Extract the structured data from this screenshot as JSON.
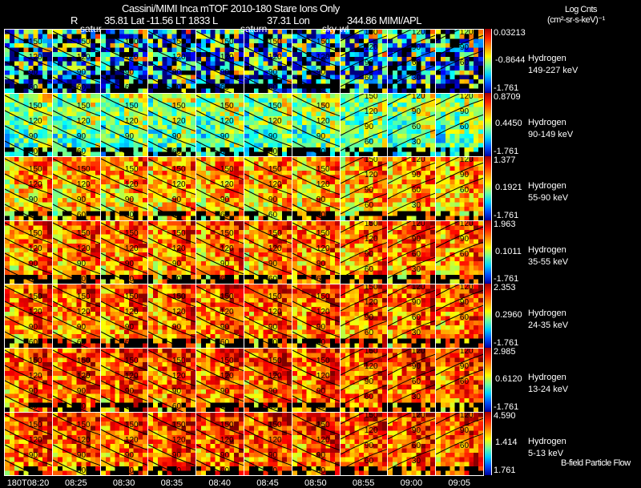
{
  "header": {
    "title": "Cassini/MIMI Inca mTOF  2010-180   Stare   Ions Only",
    "r_label": "R",
    "lat_lt": "35.81 Lat -11.56 LT 1833 L",
    "lon": "37.31 Lon",
    "lon_val": "344.86  MIMI/APL",
    "units_title": "Log Cnts",
    "units": "(cm²-sr-s-keV)⁻¹",
    "overlays": [
      "satur",
      "saturn",
      "sky-wl"
    ]
  },
  "footer": {
    "note": "B-field Particle Flow"
  },
  "chart_data": {
    "type": "heatmap",
    "title": "Cassini/MIMI Inca mTOF 2010-180 Stare Ions Only",
    "times": [
      "180T08:20",
      "08:25",
      "08:30",
      "08:35",
      "08:40",
      "08:45",
      "08:50",
      "08:55",
      "09:00",
      "09:05"
    ],
    "rows": [
      {
        "species": "Hydrogen",
        "energy": "149-227 keV",
        "max": "0.03213",
        "mid": "-0.8644",
        "min": "-1.761",
        "level": 0.35
      },
      {
        "species": "Hydrogen",
        "energy": "90-149 keV",
        "max": "0.8709",
        "mid": "0.4450",
        "min": "-1.761",
        "level": 0.55
      },
      {
        "species": "Hydrogen",
        "energy": "55-90 keV",
        "max": "1.377",
        "mid": "0.1921",
        "min": "-1.761",
        "level": 0.75
      },
      {
        "species": "Hydrogen",
        "energy": "35-55 keV",
        "max": "1.963",
        "mid": "0.1011",
        "min": "-1.761",
        "level": 0.8
      },
      {
        "species": "Hydrogen",
        "energy": "24-35 keV",
        "max": "2.353",
        "mid": "0.2960",
        "min": "-1.761",
        "level": 0.82
      },
      {
        "species": "Hydrogen",
        "energy": "13-24 keV",
        "max": "2.985",
        "mid": "0.6120",
        "min": "-1.761",
        "level": 0.84
      },
      {
        "species": "Hydrogen",
        "energy": "5-13 keV",
        "max": "4.590",
        "mid": "1.414",
        "min": "1.761",
        "level": 0.85
      }
    ],
    "contour_labels": [
      [
        "150",
        "120",
        "90",
        "60"
      ],
      [
        "150",
        "120",
        "90",
        "60"
      ],
      [
        "150",
        "120",
        "90",
        "60"
      ],
      [
        "150",
        "120",
        "90",
        "60"
      ],
      [
        "150",
        "120",
        "90",
        "60"
      ],
      [
        "150",
        "120",
        "90",
        "60"
      ],
      [
        "150",
        "120",
        "90",
        "60"
      ],
      [
        "150",
        "120",
        "90",
        "60"
      ],
      [
        "120",
        "90",
        "60",
        "30"
      ],
      [
        "120",
        "90",
        "60"
      ]
    ],
    "colorscale": "jet"
  }
}
